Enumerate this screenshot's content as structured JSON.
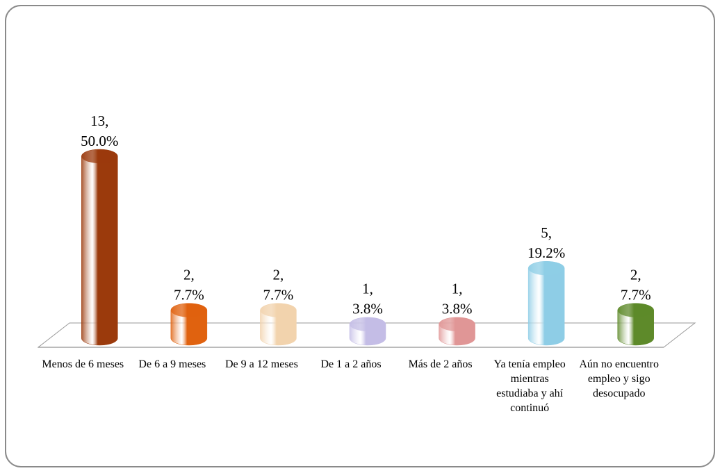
{
  "chart_data": {
    "type": "bar3d",
    "categories": [
      "Menos de 6 meses",
      "De 6 a 9 meses",
      "De 9 a 12 meses",
      "De 1 a 2 años",
      "Más de 2 años",
      "Ya tenía empleo mientras estudiaba y ahí continuó",
      "Aún no encuentro empleo y sigo desocupado"
    ],
    "values": [
      13,
      2,
      2,
      1,
      1,
      5,
      2
    ],
    "value_labels": [
      [
        "13,",
        "50.0%"
      ],
      [
        "2,",
        "7.7%"
      ],
      [
        "2,",
        "7.7%"
      ],
      [
        "1,",
        "3.8%"
      ],
      [
        "1,",
        "3.8%"
      ],
      [
        "5,",
        "19.2%"
      ],
      [
        "2,",
        "7.7%"
      ]
    ],
    "colors": [
      "#9b3a0c",
      "#e0620f",
      "#f2d3ad",
      "#c4bde6",
      "#e09696",
      "#8ecde6",
      "#5e8a2a"
    ]
  }
}
